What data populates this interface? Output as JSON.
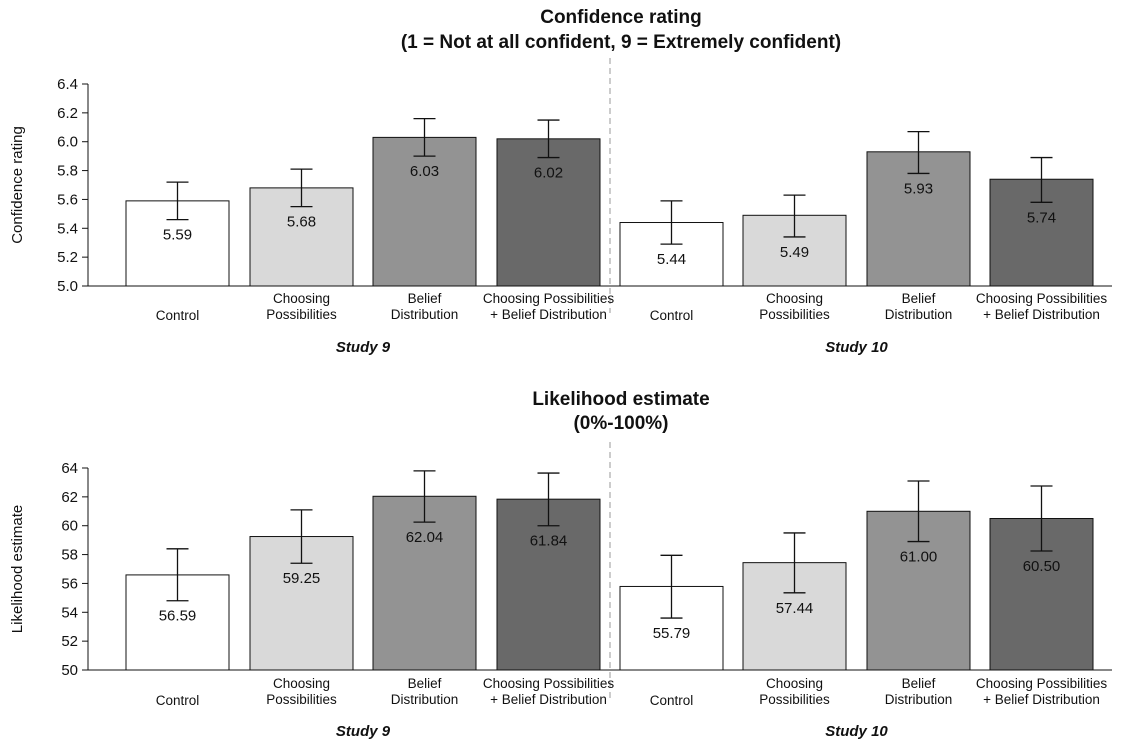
{
  "chart_data": [
    {
      "type": "bar",
      "title": "Confidence rating",
      "subtitle": "(1 = Not at all confident, 9 = Extremely confident)",
      "ylabel": "Confidence rating",
      "ylim": [
        5.0,
        6.4
      ],
      "yticks": [
        "5.0",
        "5.2",
        "5.4",
        "5.6",
        "5.8",
        "6.0",
        "6.2",
        "6.4"
      ],
      "groups": [
        {
          "name": "Study 9",
          "bars": [
            {
              "category": [
                "Control"
              ],
              "value": 5.59,
              "label": "5.59",
              "err_low": 5.46,
              "err_high": 5.72,
              "color": "#ffffff"
            },
            {
              "category": [
                "Choosing",
                "Possibilities"
              ],
              "value": 5.68,
              "label": "5.68",
              "err_low": 5.55,
              "err_high": 5.81,
              "color": "#d9d9d9"
            },
            {
              "category": [
                "Belief",
                "Distribution"
              ],
              "value": 6.03,
              "label": "6.03",
              "err_low": 5.9,
              "err_high": 6.16,
              "color": "#939393"
            },
            {
              "category": [
                "Choosing Possibilities",
                "+ Belief Distribution"
              ],
              "value": 6.02,
              "label": "6.02",
              "err_low": 5.89,
              "err_high": 6.15,
              "color": "#696969"
            }
          ]
        },
        {
          "name": "Study 10",
          "bars": [
            {
              "category": [
                "Control"
              ],
              "value": 5.44,
              "label": "5.44",
              "err_low": 5.29,
              "err_high": 5.59,
              "color": "#ffffff"
            },
            {
              "category": [
                "Choosing",
                "Possibilities"
              ],
              "value": 5.49,
              "label": "5.49",
              "err_low": 5.34,
              "err_high": 5.63,
              "color": "#d9d9d9"
            },
            {
              "category": [
                "Belief",
                "Distribution"
              ],
              "value": 5.93,
              "label": "5.93",
              "err_low": 5.78,
              "err_high": 6.07,
              "color": "#939393"
            },
            {
              "category": [
                "Choosing Possibilities",
                "+ Belief Distribution"
              ],
              "value": 5.74,
              "label": "5.74",
              "err_low": 5.58,
              "err_high": 5.89,
              "color": "#696969"
            }
          ]
        }
      ]
    },
    {
      "type": "bar",
      "title": "Likelihood estimate",
      "subtitle": "(0%-100%)",
      "ylabel": "Likelihood estimate",
      "ylim": [
        50,
        64
      ],
      "yticks": [
        "50",
        "52",
        "54",
        "56",
        "58",
        "60",
        "62",
        "64"
      ],
      "groups": [
        {
          "name": "Study 9",
          "bars": [
            {
              "category": [
                "Control"
              ],
              "value": 56.59,
              "label": "56.59",
              "err_low": 54.8,
              "err_high": 58.4,
              "color": "#ffffff"
            },
            {
              "category": [
                "Choosing",
                "Possibilities"
              ],
              "value": 59.25,
              "label": "59.25",
              "err_low": 57.4,
              "err_high": 61.1,
              "color": "#d9d9d9"
            },
            {
              "category": [
                "Belief",
                "Distribution"
              ],
              "value": 62.04,
              "label": "62.04",
              "err_low": 60.25,
              "err_high": 63.8,
              "color": "#939393"
            },
            {
              "category": [
                "Choosing Possibilities",
                "+ Belief Distribution"
              ],
              "value": 61.84,
              "label": "61.84",
              "err_low": 60.0,
              "err_high": 63.65,
              "color": "#696969"
            }
          ]
        },
        {
          "name": "Study 10",
          "bars": [
            {
              "category": [
                "Control"
              ],
              "value": 55.79,
              "label": "55.79",
              "err_low": 53.6,
              "err_high": 57.95,
              "color": "#ffffff"
            },
            {
              "category": [
                "Choosing",
                "Possibilities"
              ],
              "value": 57.44,
              "label": "57.44",
              "err_low": 55.35,
              "err_high": 59.5,
              "color": "#d9d9d9"
            },
            {
              "category": [
                "Belief",
                "Distribution"
              ],
              "value": 61.0,
              "label": "61.00",
              "err_low": 58.9,
              "err_high": 63.1,
              "color": "#939393"
            },
            {
              "category": [
                "Choosing Possibilities",
                "+ Belief Distribution"
              ],
              "value": 60.5,
              "label": "60.50",
              "err_low": 58.25,
              "err_high": 62.75,
              "color": "#696969"
            }
          ]
        }
      ]
    }
  ]
}
